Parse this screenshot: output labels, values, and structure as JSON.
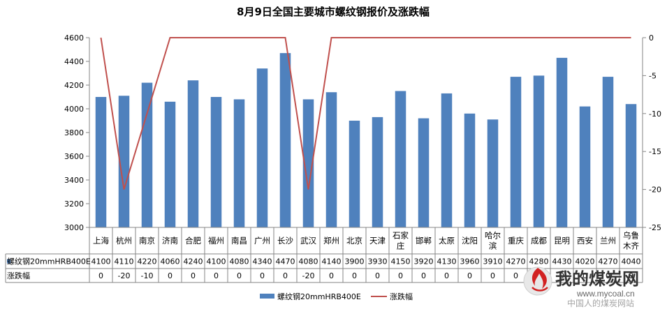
{
  "chart_data": {
    "type": "bar",
    "title": "8月9日全国主要城市螺纹钢报价及涨跌幅",
    "categories": [
      "上海",
      "杭州",
      "南京",
      "济南",
      "合肥",
      "福州",
      "南昌",
      "广州",
      "长沙",
      "武汉",
      "郑州",
      "北京",
      "天津",
      "石家庄",
      "邯郸",
      "太原",
      "沈阳",
      "哈尔滨",
      "重庆",
      "成都",
      "昆明",
      "西安",
      "兰州",
      "乌鲁木齐"
    ],
    "series": [
      {
        "name": "螺纹钢20mmHRB400E",
        "type": "bar",
        "axis": "left",
        "color": "#4f81bd",
        "values": [
          4100,
          4110,
          4220,
          4060,
          4240,
          4100,
          4080,
          4340,
          4470,
          4080,
          4140,
          3900,
          3930,
          4150,
          3920,
          4130,
          3960,
          3910,
          4270,
          4280,
          4430,
          4020,
          4270,
          4040
        ]
      },
      {
        "name": "涨跌幅",
        "type": "line",
        "axis": "right",
        "color": "#c0504d",
        "values": [
          0,
          -20,
          -10,
          0,
          0,
          0,
          0,
          0,
          0,
          -20,
          0,
          0,
          0,
          0,
          0,
          0,
          0,
          0,
          0,
          0,
          0,
          0,
          0,
          0
        ]
      }
    ],
    "ylim_left": [
      3000,
      4600
    ],
    "yticks_left": [
      3000,
      3200,
      3400,
      3600,
      3800,
      4000,
      4200,
      4400,
      4600
    ],
    "ylim_right": [
      -25,
      0
    ],
    "yticks_right": [
      0,
      -5,
      -10,
      -15,
      -20,
      -25
    ],
    "grid": false,
    "legend": "bottom",
    "data_table": true
  },
  "watermark": {
    "brand": "我的煤炭网",
    "url": "www.mycoal.cn",
    "slogan": "中国人的煤炭网站"
  }
}
